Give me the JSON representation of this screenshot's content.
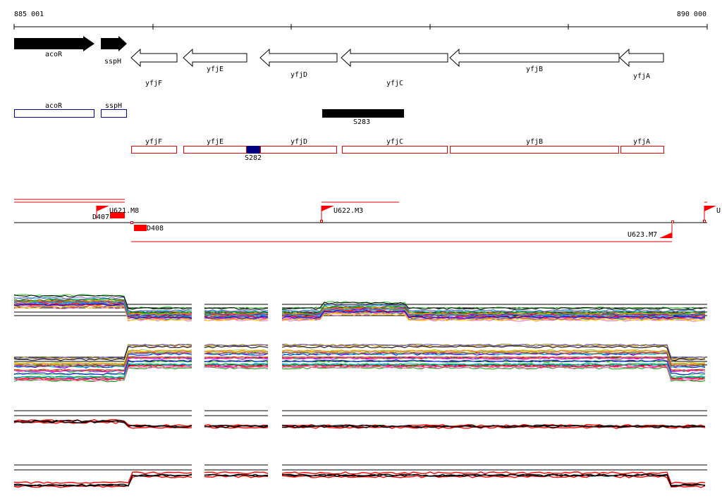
{
  "ruler": {
    "start_label": "885 001",
    "end_label": "890 000"
  },
  "annotated_genes": [
    {
      "name": "acoR",
      "strand": "+"
    },
    {
      "name": "sspH",
      "strand": "+"
    },
    {
      "name": "yfjF",
      "strand": "-"
    },
    {
      "name": "yfjE",
      "strand": "-"
    },
    {
      "name": "yfjD",
      "strand": "-"
    },
    {
      "name": "yfjC",
      "strand": "-"
    },
    {
      "name": "yfjB",
      "strand": "-"
    },
    {
      "name": "yfjA",
      "strand": "-"
    }
  ],
  "segments": {
    "s283": "S283",
    "s282": "S282"
  },
  "transcription_units": {
    "d407": "D407",
    "d408": "D408",
    "u621": "U621.M8",
    "u622": "U622.M3",
    "u623": "U623.M7",
    "u_edge": "U"
  },
  "colors": {
    "gene_arrow": "#000000",
    "blue_box": "#0000a0",
    "red_box": "#e00000",
    "flag": "#ff0000",
    "s282_fill": "#000080"
  }
}
